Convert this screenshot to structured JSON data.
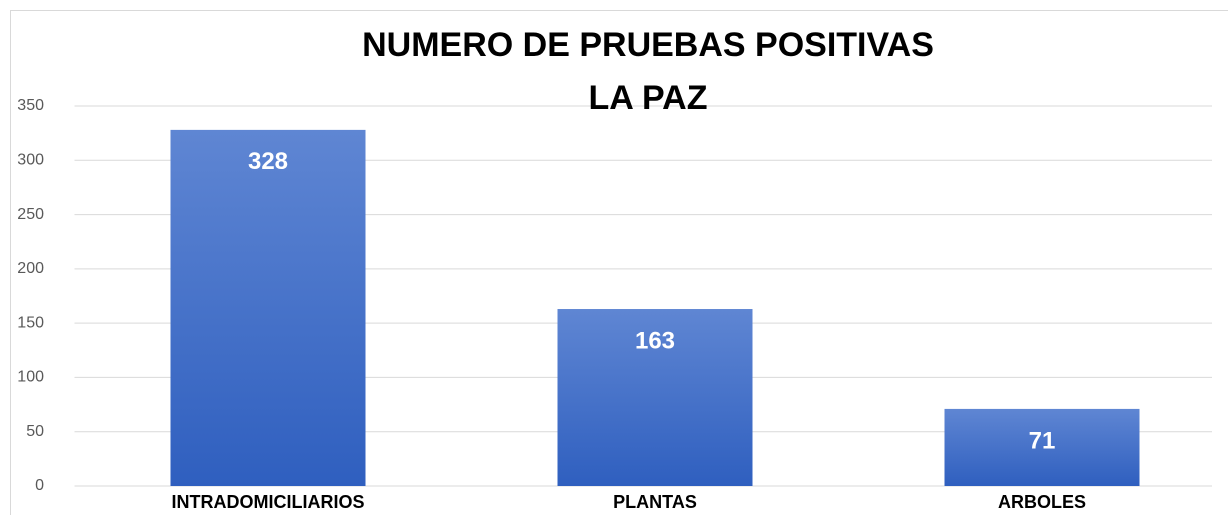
{
  "chart_data": {
    "type": "bar",
    "title": [
      "NUMERO DE PRUEBAS POSITIVAS",
      "LA PAZ"
    ],
    "categories": [
      "INTRADOMICILIARIOS",
      "PLANTAS",
      "ARBOLES"
    ],
    "values": [
      328,
      163,
      71
    ],
    "color": "#4472c4",
    "ylim": [
      0,
      350
    ],
    "yticks": [
      0,
      50,
      100,
      150,
      200,
      250,
      300,
      350
    ],
    "grid": true
  }
}
